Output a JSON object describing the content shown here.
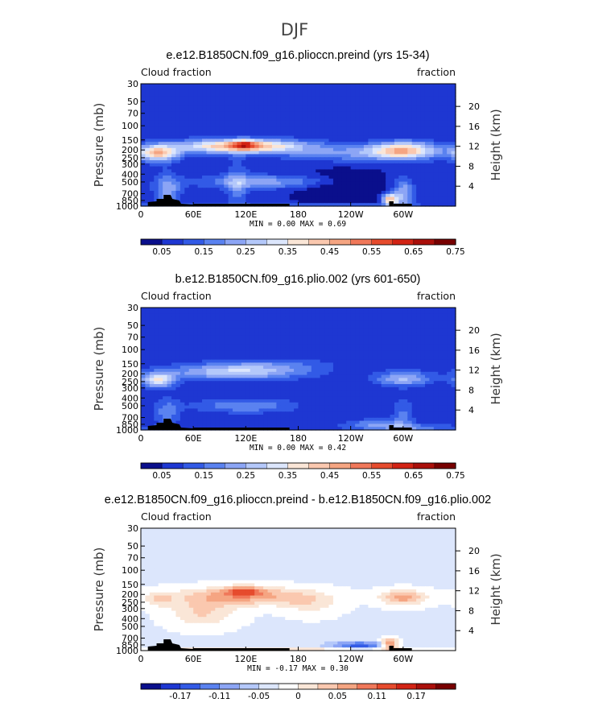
{
  "figure_title": "DJF",
  "chart_data": [
    {
      "type": "heatmap",
      "title": "e.e12.B1850CN.f09_g16.plioccn.preind (yrs 15-34)",
      "left_label": "Cloud fraction",
      "right_label": "fraction",
      "ylabel": "Pressure (mb)",
      "ylabel_right": "Height (km)",
      "x_ticks": [
        "0",
        "60E",
        "120E",
        "180",
        "120W",
        "60W"
      ],
      "x_tick_values": [
        0,
        60,
        120,
        180,
        240,
        300
      ],
      "xlim": [
        0,
        360
      ],
      "y_ticks": [
        "30",
        "50",
        "70",
        "100",
        "150",
        "200",
        "250",
        "300",
        "400",
        "500",
        "700",
        "850",
        "1000"
      ],
      "y_tick_values": [
        30,
        50,
        70,
        100,
        150,
        200,
        250,
        300,
        400,
        500,
        700,
        850,
        1000
      ],
      "ylim": [
        1000,
        30
      ],
      "y_ticks_right": [
        "20",
        "16",
        "12",
        "8",
        "4"
      ],
      "y_tick_values_right": [
        20,
        16,
        12,
        8,
        4
      ],
      "stats_text": "MIN =    0.00   MAX =    0.69",
      "colorbar_labels": [
        "0.05",
        "0.15",
        "0.25",
        "0.35",
        "0.45",
        "0.55",
        "0.65",
        "0.75"
      ],
      "colorbar_colors": [
        "#0a0f8c",
        "#1e37d2",
        "#325ae6",
        "#5a82f0",
        "#8ca5f5",
        "#b4c8fa",
        "#dce6fc",
        "#fae6d7",
        "#fac8af",
        "#f5a582",
        "#f0785a",
        "#e64b2d",
        "#d22314",
        "#aa0f0a",
        "#780000"
      ],
      "colorbar_levels": [
        0.0,
        0.05,
        0.1,
        0.15,
        0.2,
        0.25,
        0.3,
        0.35,
        0.4,
        0.45,
        0.5,
        0.55,
        0.6,
        0.65,
        0.7,
        0.75
      ],
      "features": [
        {
          "type": "base",
          "value": 0.06
        },
        {
          "lon": 20,
          "p": 220,
          "slon": 16,
          "sp": 0.16,
          "amp": 0.36
        },
        {
          "lon": 115,
          "p": 180,
          "slon": 50,
          "sp": 0.14,
          "amp": 0.42
        },
        {
          "lon": 118,
          "p": 170,
          "slon": 9,
          "sp": 0.09,
          "amp": 0.22
        },
        {
          "lon": 250,
          "p": 220,
          "slon": 60,
          "sp": 0.17,
          "amp": 0.14
        },
        {
          "lon": 300,
          "p": 200,
          "slon": 25,
          "sp": 0.17,
          "amp": 0.33
        },
        {
          "lon": 150,
          "p": 500,
          "slon": 60,
          "sp": 0.14,
          "amp": 0.16
        },
        {
          "lon": 110,
          "p": 550,
          "slon": 9,
          "sp": 0.45,
          "amp": 0.12
        },
        {
          "lon": 30,
          "p": 650,
          "slon": 10,
          "sp": 0.35,
          "amp": 0.18
        },
        {
          "lon": 285,
          "p": 820,
          "slon": 6,
          "sp": 0.12,
          "amp": 0.38
        },
        {
          "lon": 300,
          "p": 700,
          "slon": 8,
          "sp": 0.3,
          "amp": 0.2
        },
        {
          "lon": 230,
          "p": 560,
          "slon": 35,
          "sp": 0.28,
          "amp": -0.1
        },
        {
          "lon": 160,
          "p": 980,
          "slon": 140,
          "sp": 0.03,
          "amp": 0.1
        }
      ]
    },
    {
      "type": "heatmap",
      "title": "b.e12.B1850CN.f09_g16.plio.002 (yrs 601-650)",
      "left_label": "Cloud fraction",
      "right_label": "fraction",
      "ylabel": "Pressure (mb)",
      "ylabel_right": "Height (km)",
      "x_ticks": [
        "0",
        "60E",
        "120E",
        "180",
        "120W",
        "60W"
      ],
      "x_tick_values": [
        0,
        60,
        120,
        180,
        240,
        300
      ],
      "xlim": [
        0,
        360
      ],
      "y_ticks": [
        "30",
        "50",
        "70",
        "100",
        "150",
        "200",
        "250",
        "300",
        "400",
        "500",
        "700",
        "850",
        "1000"
      ],
      "y_tick_values": [
        30,
        50,
        70,
        100,
        150,
        200,
        250,
        300,
        400,
        500,
        700,
        850,
        1000
      ],
      "ylim": [
        1000,
        30
      ],
      "y_ticks_right": [
        "20",
        "16",
        "12",
        "8",
        "4"
      ],
      "y_tick_values_right": [
        20,
        16,
        12,
        8,
        4
      ],
      "stats_text": "MIN =    0.00   MAX =    0.42",
      "colorbar_labels": [
        "0.05",
        "0.15",
        "0.25",
        "0.35",
        "0.45",
        "0.55",
        "0.65",
        "0.75"
      ],
      "colorbar_colors": [
        "#0a0f8c",
        "#1e37d2",
        "#325ae6",
        "#5a82f0",
        "#8ca5f5",
        "#b4c8fa",
        "#dce6fc",
        "#fae6d7",
        "#fac8af",
        "#f5a582",
        "#f0785a",
        "#e64b2d",
        "#d22314",
        "#aa0f0a",
        "#780000"
      ],
      "colorbar_levels": [
        0.0,
        0.05,
        0.1,
        0.15,
        0.2,
        0.25,
        0.3,
        0.35,
        0.4,
        0.45,
        0.5,
        0.55,
        0.6,
        0.65,
        0.7,
        0.75
      ],
      "features": [
        {
          "type": "base",
          "value": 0.06
        },
        {
          "lon": 20,
          "p": 240,
          "slon": 14,
          "sp": 0.15,
          "amp": 0.28
        },
        {
          "lon": 110,
          "p": 190,
          "slon": 55,
          "sp": 0.15,
          "amp": 0.24
        },
        {
          "lon": 150,
          "p": 150,
          "slon": 50,
          "sp": 0.12,
          "amp": 0.08
        },
        {
          "lon": 300,
          "p": 230,
          "slon": 22,
          "sp": 0.15,
          "amp": 0.2
        },
        {
          "lon": 120,
          "p": 500,
          "slon": 40,
          "sp": 0.14,
          "amp": 0.14
        },
        {
          "lon": 30,
          "p": 620,
          "slon": 10,
          "sp": 0.3,
          "amp": 0.12
        },
        {
          "lon": 270,
          "p": 820,
          "slon": 25,
          "sp": 0.08,
          "amp": 0.12
        },
        {
          "lon": 300,
          "p": 650,
          "slon": 9,
          "sp": 0.35,
          "amp": 0.1
        },
        {
          "lon": 300,
          "p": 930,
          "slon": 45,
          "sp": 0.06,
          "amp": 0.14
        }
      ]
    },
    {
      "type": "heatmap",
      "title": "e.e12.B1850CN.f09_g16.plioccn.preind - b.e12.B1850CN.f09_g16.plio.002",
      "left_label": "Cloud fraction",
      "right_label": "fraction",
      "ylabel": "Pressure (mb)",
      "ylabel_right": "Height (km)",
      "x_ticks": [
        "0",
        "60E",
        "120E",
        "180",
        "120W",
        "60W"
      ],
      "x_tick_values": [
        0,
        60,
        120,
        180,
        240,
        300
      ],
      "xlim": [
        0,
        360
      ],
      "y_ticks": [
        "30",
        "50",
        "70",
        "100",
        "150",
        "200",
        "250",
        "300",
        "400",
        "500",
        "700",
        "850",
        "1000"
      ],
      "y_tick_values": [
        30,
        50,
        70,
        100,
        150,
        200,
        250,
        300,
        400,
        500,
        700,
        850,
        1000
      ],
      "ylim": [
        1000,
        30
      ],
      "y_ticks_right": [
        "20",
        "16",
        "12",
        "8",
        "4"
      ],
      "y_tick_values_right": [
        20,
        16,
        12,
        8,
        4
      ],
      "stats_text": "MIN =   -0.17   MAX =    0.30",
      "colorbar_labels": [
        "-0.17",
        "-0.11",
        "-0.05",
        "0",
        "0.05",
        "0.11",
        "0.17"
      ],
      "colorbar_colors": [
        "#0a0f8c",
        "#1e37d2",
        "#325ae6",
        "#5a82f0",
        "#8ca5f5",
        "#b4c8fa",
        "#dce6fc",
        "#ffffff",
        "#fae6d7",
        "#fac8af",
        "#f5a582",
        "#f0785a",
        "#e64b2d",
        "#d22314",
        "#aa0f0a",
        "#780000"
      ],
      "colorbar_levels": [
        -0.23,
        -0.2,
        -0.17,
        -0.14,
        -0.11,
        -0.08,
        -0.05,
        -0.02,
        0.02,
        0.05,
        0.08,
        0.11,
        0.14,
        0.17,
        0.2,
        0.23,
        0.26
      ],
      "features": [
        {
          "type": "base",
          "value": -0.03
        },
        {
          "lon": 120,
          "p": 210,
          "slon": 60,
          "sp": 0.2,
          "amp": 0.12
        },
        {
          "lon": 118,
          "p": 180,
          "slon": 16,
          "sp": 0.1,
          "amp": 0.1
        },
        {
          "lon": 70,
          "p": 350,
          "slon": 30,
          "sp": 0.3,
          "amp": 0.08
        },
        {
          "lon": 300,
          "p": 220,
          "slon": 20,
          "sp": 0.17,
          "amp": 0.12
        },
        {
          "lon": 195,
          "p": 280,
          "slon": 25,
          "sp": 0.25,
          "amp": 0.05
        },
        {
          "lon": 285,
          "p": 830,
          "slon": 7,
          "sp": 0.12,
          "amp": 0.18
        },
        {
          "lon": 250,
          "p": 860,
          "slon": 25,
          "sp": 0.08,
          "amp": -0.12
        },
        {
          "lon": 160,
          "p": 975,
          "slon": 150,
          "sp": 0.03,
          "amp": 0.08
        },
        {
          "lon": 20,
          "p": 230,
          "slon": 12,
          "sp": 0.15,
          "amp": 0.06
        }
      ]
    }
  ]
}
